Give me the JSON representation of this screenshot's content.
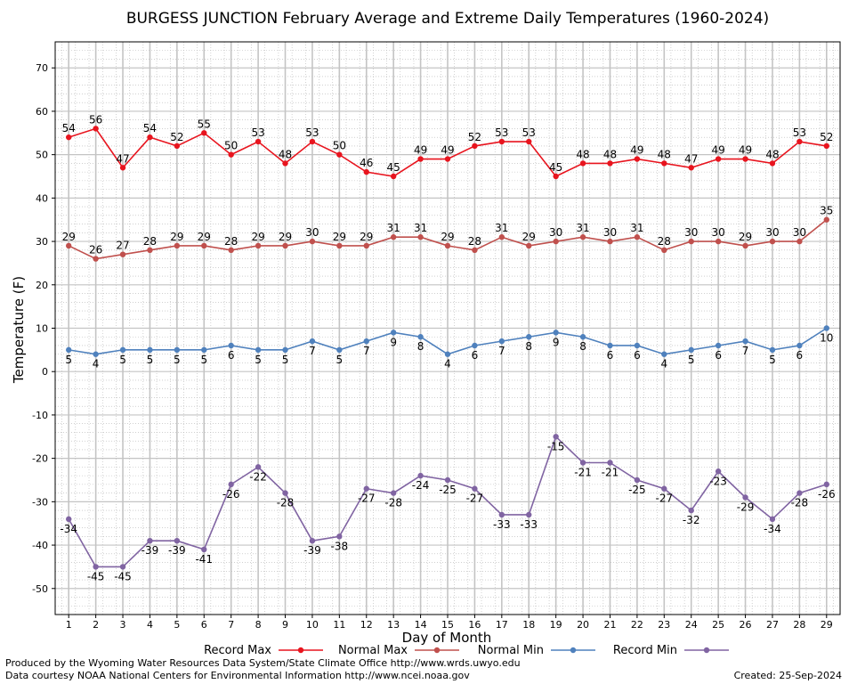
{
  "chart_data": {
    "type": "line",
    "title": "BURGESS JUNCTION February Average and Extreme Daily Temperatures (1960-2024)",
    "xlabel": "Day of Month",
    "ylabel": "Temperature (F)",
    "ylim": [
      -56,
      76
    ],
    "xlim": [
      0.5,
      29.5
    ],
    "yticks": [
      -50,
      -40,
      -30,
      -20,
      -10,
      0,
      10,
      20,
      30,
      40,
      50,
      60,
      70
    ],
    "x": [
      1,
      2,
      3,
      4,
      5,
      6,
      7,
      8,
      9,
      10,
      11,
      12,
      13,
      14,
      15,
      16,
      17,
      18,
      19,
      20,
      21,
      22,
      23,
      24,
      25,
      26,
      27,
      28,
      29
    ],
    "grid": true,
    "legend_position": "bottom",
    "series": [
      {
        "name": "Record Max",
        "color": "#e8141e",
        "label_pos": "above",
        "values": [
          54,
          56,
          47,
          54,
          52,
          55,
          50,
          53,
          48,
          53,
          50,
          46,
          45,
          49,
          49,
          52,
          53,
          53,
          45,
          48,
          48,
          49,
          48,
          47,
          49,
          49,
          48,
          53,
          52
        ]
      },
      {
        "name": "Normal Max",
        "color": "#c0504d",
        "label_pos": "above",
        "values": [
          29,
          26,
          27,
          28,
          29,
          29,
          28,
          29,
          29,
          30,
          29,
          29,
          31,
          31,
          29,
          28,
          31,
          29,
          30,
          31,
          30,
          31,
          28,
          30,
          30,
          29,
          30,
          30,
          35
        ]
      },
      {
        "name": "Normal Min",
        "color": "#4f81bd",
        "label_pos": "below",
        "values": [
          5,
          4,
          5,
          5,
          5,
          5,
          6,
          5,
          5,
          7,
          5,
          7,
          9,
          8,
          4,
          6,
          7,
          8,
          9,
          8,
          6,
          6,
          4,
          5,
          6,
          7,
          5,
          6,
          10
        ]
      },
      {
        "name": "Record Min",
        "color": "#8064a2",
        "label_pos": "below",
        "values": [
          -34,
          -45,
          -45,
          -39,
          -39,
          -41,
          -26,
          -22,
          -28,
          -39,
          -38,
          -27,
          -28,
          -24,
          -25,
          -27,
          -33,
          -33,
          -15,
          -21,
          -21,
          -25,
          -27,
          -32,
          -23,
          -29,
          -34,
          -28,
          -26
        ]
      }
    ]
  },
  "footer": {
    "line1": "Produced by the Wyoming Water Resources Data System/State Climate Office http://www.wrds.uwyo.edu",
    "line2": "Data courtesy NOAA National Centers for Environmental Information http://www.ncei.noaa.gov",
    "created": "Created:  25-Sep-2024"
  }
}
